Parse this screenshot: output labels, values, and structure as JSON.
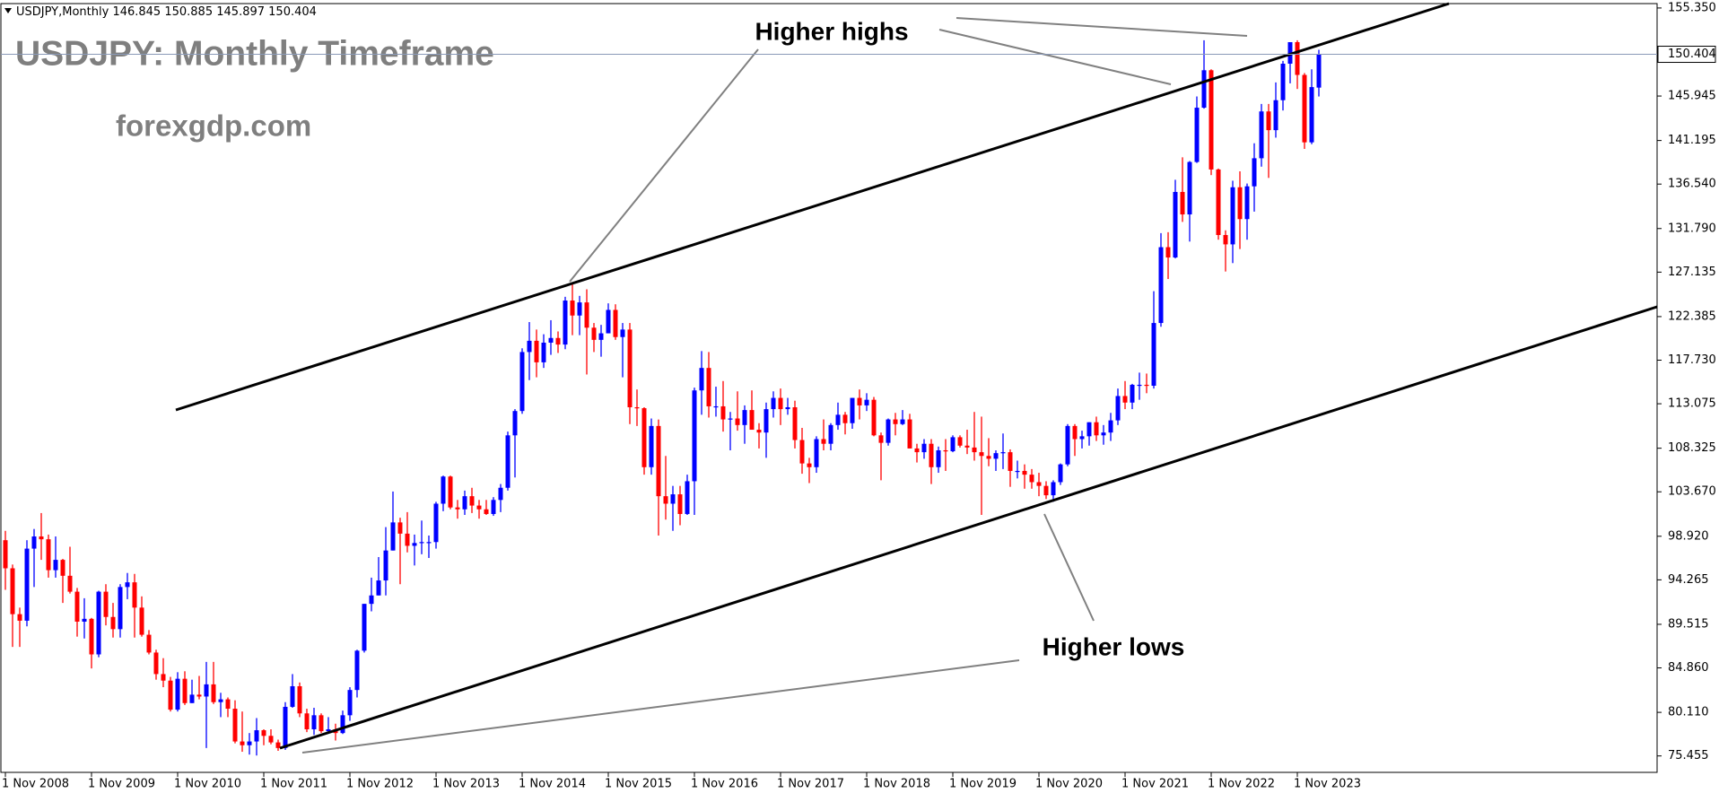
{
  "chart_data": {
    "type": "candlestick",
    "symbol": "USDJPY,Monthly",
    "title": "USDJPY: Monthly Timeframe",
    "watermark": "forexgdp.com",
    "annotations": [
      "Higher highs",
      "Higher lows"
    ],
    "up_color": "#0000ff",
    "down_color": "#ff0000",
    "categories": [
      "1 Nov 2008",
      null,
      null,
      null,
      null,
      null,
      null,
      null,
      null,
      null,
      null,
      null,
      "1 Nov 2009",
      null,
      null,
      null,
      null,
      null,
      null,
      null,
      null,
      null,
      null,
      null,
      "1 Nov 2010",
      null,
      null,
      null,
      null,
      null,
      null,
      null,
      null,
      null,
      null,
      null,
      "1 Nov 2011",
      null,
      null,
      null,
      null,
      null,
      null,
      null,
      null,
      null,
      null,
      null,
      "1 Nov 2012",
      null,
      null,
      null,
      null,
      null,
      null,
      null,
      null,
      null,
      null,
      null,
      "1 Nov 2013",
      null,
      null,
      null,
      null,
      null,
      null,
      null,
      null,
      null,
      null,
      null,
      "1 Nov 2014",
      null,
      null,
      null,
      null,
      null,
      null,
      null,
      null,
      null,
      null,
      null,
      "1 Nov 2015",
      null,
      null,
      null,
      null,
      null,
      null,
      null,
      null,
      null,
      null,
      null,
      "1 Nov 2016",
      null,
      null,
      null,
      null,
      null,
      null,
      null,
      null,
      null,
      null,
      null,
      "1 Nov 2017",
      null,
      null,
      null,
      null,
      null,
      null,
      null,
      null,
      null,
      null,
      null,
      "1 Nov 2018",
      null,
      null,
      null,
      null,
      null,
      null,
      null,
      null,
      null,
      null,
      null,
      "1 Nov 2019",
      null,
      null,
      null,
      null,
      null,
      null,
      null,
      null,
      null,
      null,
      null,
      "1 Nov 2020",
      null,
      null,
      null,
      null,
      null,
      null,
      null,
      null,
      null,
      null,
      null,
      "1 Nov 2021",
      null,
      null,
      null,
      null,
      null,
      null,
      null,
      null,
      null,
      null,
      null,
      "1 Nov 2022",
      null,
      null,
      null,
      null,
      null,
      null,
      null,
      null,
      null,
      null,
      null,
      "1 Nov 2023",
      null,
      null,
      null
    ],
    "open": [
      98.5,
      95.5,
      90.6,
      89.9,
      97.6,
      98.9,
      98.6,
      95.3,
      96.4,
      94.7,
      93.0,
      89.8,
      90.1,
      86.3,
      93.0,
      90.3,
      89.0,
      93.5,
      94.0,
      91.3,
      88.4,
      86.5,
      84.2,
      83.5,
      80.4,
      83.7,
      81.1,
      82.0,
      81.8,
      83.1,
      81.2,
      81.5,
      80.5,
      77.0,
      76.6,
      77.0,
      78.2,
      77.6,
      76.9,
      76.3,
      80.7,
      82.9,
      80.0,
      78.3,
      79.8,
      78.1,
      78.3,
      77.9,
      79.8,
      82.5,
      86.7,
      91.7,
      92.6,
      94.2,
      97.4,
      100.4,
      99.2,
      97.9,
      98.2,
      98.3,
      98.3,
      102.4,
      105.3,
      102.0,
      101.8,
      103.2,
      102.2,
      101.8,
      101.3,
      102.8,
      104.1,
      109.7,
      112.3,
      118.6,
      119.8,
      117.5,
      119.6,
      120.1,
      119.4,
      124.1,
      122.5,
      123.9,
      121.2,
      119.9,
      120.6,
      123.1,
      120.2,
      121.0,
      112.7,
      112.6,
      106.3,
      110.7,
      103.2,
      102.4,
      103.4,
      101.3,
      104.8,
      114.5,
      116.9,
      112.8,
      112.8,
      111.4,
      111.5,
      110.8,
      112.4,
      110.3,
      110.0,
      112.5,
      113.7,
      112.5,
      112.7,
      109.2,
      106.7,
      106.3,
      109.3,
      108.8,
      110.8,
      111.9,
      111.0,
      113.7,
      112.9,
      113.5,
      109.7,
      108.9,
      111.4,
      110.9,
      111.4,
      108.3,
      107.9,
      108.8,
      106.3,
      108.1,
      108.0,
      109.5,
      108.6,
      108.4,
      107.9,
      107.5,
      107.2,
      107.8,
      107.9,
      105.9,
      105.9,
      105.5,
      104.7,
      104.3,
      103.3,
      104.7,
      106.6,
      110.7,
      109.3,
      109.6,
      111.1,
      109.7,
      110.0,
      111.3,
      113.9,
      113.2,
      115.1,
      115.1,
      115.0,
      121.7,
      129.8,
      128.7,
      135.7,
      133.3,
      138.9,
      144.7,
      148.7,
      138.1,
      131.1,
      130.1,
      136.2,
      132.8,
      136.3,
      139.3,
      144.3,
      142.3,
      145.5,
      149.4,
      151.7,
      148.2,
      141.0,
      146.845
    ],
    "high": [
      99.5,
      95.9,
      91.3,
      98.5,
      99.7,
      101.4,
      99.1,
      98.9,
      96.5,
      97.8,
      93.4,
      92.3,
      90.2,
      93.1,
      93.8,
      91.8,
      93.8,
      95.0,
      94.9,
      92.5,
      88.9,
      86.8,
      85.9,
      83.9,
      84.4,
      84.5,
      83.6,
      84.0,
      85.5,
      85.5,
      82.2,
      81.7,
      81.4,
      80.2,
      77.9,
      79.5,
      78.3,
      78.3,
      77.2,
      81.2,
      84.2,
      83.3,
      80.5,
      80.6,
      80.0,
      79.6,
      78.9,
      80.3,
      82.8,
      86.8,
      91.7,
      94.5,
      96.7,
      99.9,
      103.7,
      100.9,
      101.5,
      99.1,
      100.6,
      99.0,
      102.6,
      105.4,
      105.4,
      102.8,
      103.8,
      104.1,
      102.8,
      102.8,
      103.1,
      104.5,
      110.1,
      112.5,
      119.0,
      121.8,
      121.0,
      120.5,
      122.0,
      120.8,
      124.5,
      125.9,
      124.6,
      125.3,
      121.7,
      121.5,
      123.8,
      123.7,
      121.7,
      121.7,
      114.6,
      112.7,
      111.5,
      111.4,
      107.5,
      104.3,
      104.3,
      105.5,
      114.8,
      118.7,
      118.6,
      114.9,
      115.5,
      112.2,
      114.4,
      112.9,
      114.5,
      111.0,
      113.2,
      114.4,
      114.7,
      113.7,
      113.4,
      110.5,
      107.3,
      109.6,
      111.4,
      111.0,
      113.2,
      112.2,
      113.7,
      114.6,
      114.2,
      113.8,
      110.0,
      111.5,
      112.1,
      112.4,
      112.0,
      108.8,
      109.3,
      109.3,
      108.5,
      109.3,
      109.7,
      109.7,
      110.3,
      112.2,
      111.7,
      109.4,
      108.1,
      109.9,
      108.2,
      107.0,
      106.6,
      106.1,
      105.7,
      104.8,
      104.9,
      106.7,
      110.9,
      110.9,
      110.2,
      111.1,
      111.7,
      110.8,
      112.1,
      114.7,
      115.5,
      115.2,
      116.4,
      116.3,
      125.1,
      131.3,
      131.4,
      137.0,
      139.4,
      139.0,
      145.9,
      151.9,
      148.8,
      138.2,
      131.6,
      136.9,
      137.9,
      136.6,
      140.9,
      145.1,
      145.1,
      147.4,
      149.7,
      151.7,
      151.9,
      148.4,
      148.8,
      150.885
    ],
    "low": [
      93.2,
      87.1,
      87.1,
      89.3,
      93.5,
      96.4,
      94.5,
      94.5,
      91.8,
      92.8,
      88.2,
      88.0,
      84.8,
      86.0,
      89.4,
      88.1,
      88.1,
      92.2,
      88.1,
      88.2,
      86.3,
      83.6,
      82.8,
      80.2,
      80.2,
      80.9,
      81.1,
      81.5,
      76.3,
      81.0,
      79.6,
      79.6,
      76.8,
      75.9,
      75.6,
      75.5,
      76.6,
      76.7,
      76.0,
      76.1,
      80.6,
      79.6,
      78.0,
      77.7,
      77.9,
      77.9,
      77.1,
      77.8,
      79.2,
      81.7,
      86.5,
      90.9,
      92.6,
      92.6,
      97.4,
      93.8,
      97.2,
      95.8,
      97.0,
      96.6,
      97.6,
      101.6,
      101.8,
      100.8,
      101.2,
      101.4,
      100.8,
      101.2,
      101.1,
      101.5,
      103.8,
      105.2,
      112.0,
      115.6,
      115.9,
      116.9,
      118.3,
      118.5,
      118.9,
      120.4,
      120.4,
      116.2,
      118.6,
      118.1,
      120.6,
      119.9,
      115.9,
      110.9,
      110.7,
      105.5,
      105.5,
      99.0,
      100.7,
      99.5,
      100.1,
      101.2,
      101.2,
      111.9,
      111.6,
      111.7,
      110.1,
      108.1,
      110.2,
      108.8,
      110.6,
      108.3,
      107.3,
      111.6,
      110.8,
      111.9,
      108.3,
      105.6,
      104.6,
      105.7,
      108.1,
      108.1,
      110.3,
      109.8,
      110.4,
      111.4,
      112.3,
      109.6,
      104.9,
      108.6,
      109.7,
      110.8,
      108.3,
      106.8,
      107.2,
      104.5,
      105.7,
      105.9,
      107.9,
      108.4,
      107.7,
      107.0,
      101.2,
      106.4,
      105.9,
      106.1,
      104.2,
      105.1,
      104.0,
      104.0,
      103.2,
      102.9,
      102.6,
      104.4,
      106.4,
      107.5,
      108.3,
      108.6,
      109.1,
      108.7,
      109.1,
      110.8,
      112.5,
      112.5,
      113.5,
      114.2,
      114.7,
      121.3,
      126.4,
      128.6,
      132.5,
      130.4,
      138.8,
      144.6,
      137.5,
      130.6,
      127.2,
      128.1,
      129.6,
      130.6,
      133.6,
      138.4,
      137.2,
      141.5,
      144.4,
      147.3,
      146.7,
      140.3,
      140.8,
      145.897
    ],
    "close": [
      95.5,
      90.6,
      89.9,
      97.6,
      98.9,
      98.6,
      95.3,
      96.4,
      94.7,
      93.0,
      89.8,
      90.1,
      86.3,
      93.0,
      90.3,
      89.0,
      93.5,
      94.0,
      91.3,
      88.4,
      86.5,
      84.2,
      83.5,
      80.4,
      83.7,
      81.1,
      82.0,
      81.8,
      83.1,
      81.2,
      81.5,
      80.5,
      77.0,
      76.6,
      77.0,
      78.2,
      77.6,
      76.9,
      76.3,
      80.7,
      82.9,
      80.0,
      78.3,
      79.8,
      78.1,
      78.3,
      77.9,
      79.8,
      82.5,
      86.7,
      91.7,
      92.6,
      94.2,
      97.4,
      100.4,
      99.2,
      97.9,
      98.2,
      98.3,
      98.3,
      102.4,
      105.3,
      102.0,
      101.8,
      103.2,
      102.2,
      101.8,
      101.3,
      102.8,
      104.1,
      109.7,
      112.3,
      118.6,
      119.8,
      117.5,
      119.6,
      120.1,
      119.4,
      124.1,
      122.5,
      123.9,
      121.2,
      119.9,
      120.6,
      123.1,
      120.2,
      121.0,
      112.7,
      112.6,
      106.3,
      110.7,
      103.2,
      102.4,
      103.4,
      101.3,
      104.8,
      114.5,
      116.9,
      112.8,
      112.8,
      111.4,
      111.5,
      110.8,
      112.4,
      110.3,
      110.0,
      112.5,
      113.7,
      112.5,
      112.7,
      109.2,
      106.7,
      106.3,
      109.3,
      108.8,
      110.8,
      111.9,
      111.0,
      113.7,
      112.9,
      113.5,
      109.7,
      108.9,
      111.4,
      110.9,
      111.4,
      108.3,
      107.9,
      108.8,
      106.3,
      108.1,
      108.0,
      109.5,
      108.6,
      108.4,
      107.9,
      107.5,
      107.2,
      107.8,
      107.9,
      105.9,
      105.9,
      105.5,
      104.7,
      104.3,
      103.3,
      104.7,
      106.6,
      110.7,
      109.3,
      109.6,
      111.1,
      109.7,
      110.0,
      111.3,
      113.9,
      113.2,
      115.1,
      115.1,
      115.0,
      121.7,
      129.8,
      128.7,
      135.7,
      133.3,
      138.9,
      144.7,
      148.7,
      138.1,
      131.1,
      130.1,
      136.2,
      132.8,
      136.3,
      139.3,
      144.3,
      142.3,
      145.5,
      149.4,
      151.7,
      148.2,
      141.0,
      146.9,
      150.404
    ],
    "ylim": [
      73.7,
      155.82
    ],
    "yticks": [
      {
        "value": 155.35,
        "label": "155.350"
      },
      145.945,
      141.195,
      {
        "value": 136.54,
        "label": "136.540"
      },
      {
        "value": 131.79,
        "label": "131.790"
      },
      127.135,
      122.385,
      {
        "value": 117.73,
        "label": "117.730"
      },
      113.075,
      108.325,
      {
        "value": 103.67,
        "label": "103.670"
      },
      {
        "value": 98.92,
        "label": "98.920"
      },
      94.265,
      89.515,
      {
        "value": 84.86,
        "label": "84.860"
      },
      {
        "value": 80.11,
        "label": "80.110"
      },
      75.455
    ]
  }
}
